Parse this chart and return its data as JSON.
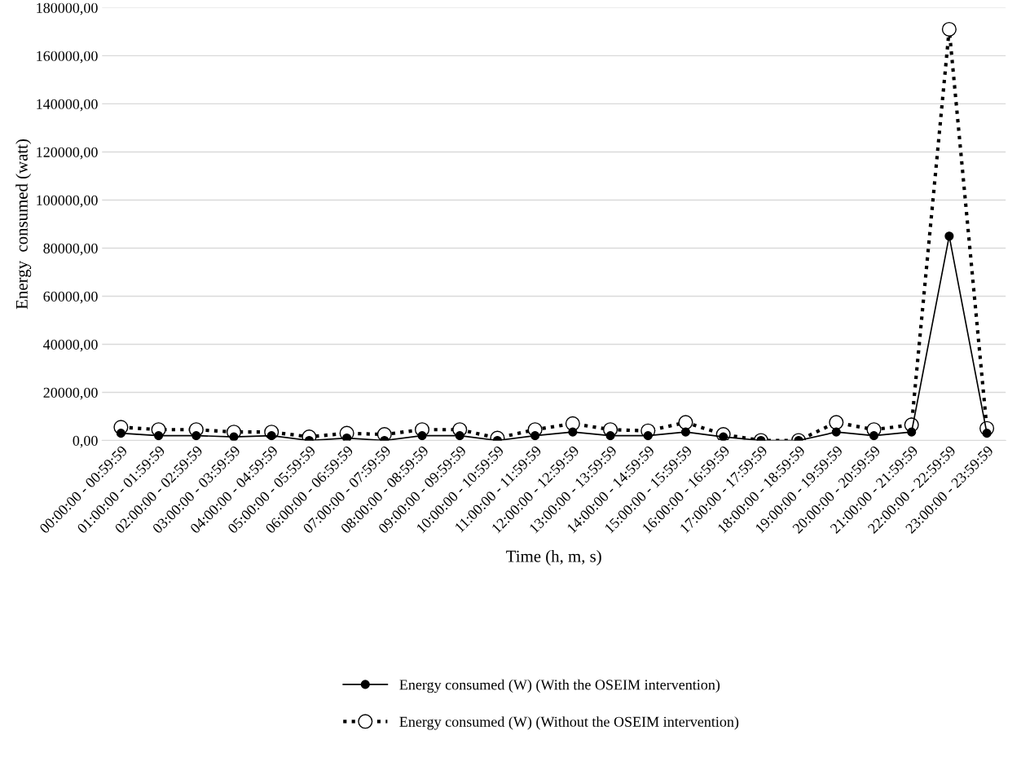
{
  "chart_data": {
    "type": "line",
    "xlabel": "Time (h, m, s)",
    "ylabel": "Energy  consumed (watt)",
    "categories": [
      "00:00:00 - 00:59:59",
      "01:00:00 - 01:59:59",
      "02:00:00 - 02:59:59",
      "03:00:00 - 03:59:59",
      "04:00:00 - 04:59:59",
      "05:00:00 - 05:59:59",
      "06:00:00 - 06:59:59",
      "07:00:00 - 07:59:59",
      "08:00:00 - 08:59:59",
      "09:00:00 - 09:59:59",
      "10:00:00 - 10:59:59",
      "11:00:00 - 11:59:59",
      "12:00:00 - 12:59:59",
      "13:00:00 - 13:59:59",
      "14:00:00 - 14:59:59",
      "15:00:00 - 15:59:59",
      "16:00:00 - 16:59:59",
      "17:00:00 - 17:59:59",
      "18:00:00 - 18:59:59",
      "19:00:00 - 19:59:59",
      "20:00:00 - 20:59:59",
      "21:00:00 - 21:59:59",
      "22:00:00 - 22:59:59",
      "23:00:00 - 23:59:59"
    ],
    "series": [
      {
        "name": "Energy consumed (W) (With the OSEIM intervention)",
        "color": "#000000",
        "line_style": "solid",
        "marker": "circle",
        "values": [
          3000,
          2000,
          2000,
          1500,
          2000,
          0,
          1000,
          0,
          2000,
          2000,
          0,
          2000,
          3500,
          2000,
          2000,
          3500,
          1500,
          0,
          0,
          3500,
          2000,
          3500,
          85000,
          3000
        ]
      },
      {
        "name": "Energy consumed (W) (Without the OSEIM intervention)",
        "color": "#000000",
        "line_style": "dotted",
        "marker": "circle",
        "values": [
          5500,
          4500,
          4500,
          3500,
          3500,
          1500,
          3000,
          2500,
          4500,
          4500,
          1000,
          4500,
          7000,
          4500,
          4000,
          7500,
          2500,
          0,
          0,
          7500,
          4500,
          6500,
          171000,
          5000
        ]
      }
    ],
    "ylim": [
      0,
      180000
    ],
    "yticks": [
      {
        "value": 0,
        "label": "0,00"
      },
      {
        "value": 20000,
        "label": "20000,00"
      },
      {
        "value": 40000,
        "label": "40000,00"
      },
      {
        "value": 60000,
        "label": "60000,00"
      },
      {
        "value": 80000,
        "label": "80000,00"
      },
      {
        "value": 100000,
        "label": "100000,00"
      },
      {
        "value": 120000,
        "label": "120000,00"
      },
      {
        "value": 140000,
        "label": "140000,00"
      },
      {
        "value": 160000,
        "label": "160000,00"
      },
      {
        "value": 180000,
        "label": "180000,00"
      }
    ],
    "grid": "y",
    "legend": "bottom"
  }
}
